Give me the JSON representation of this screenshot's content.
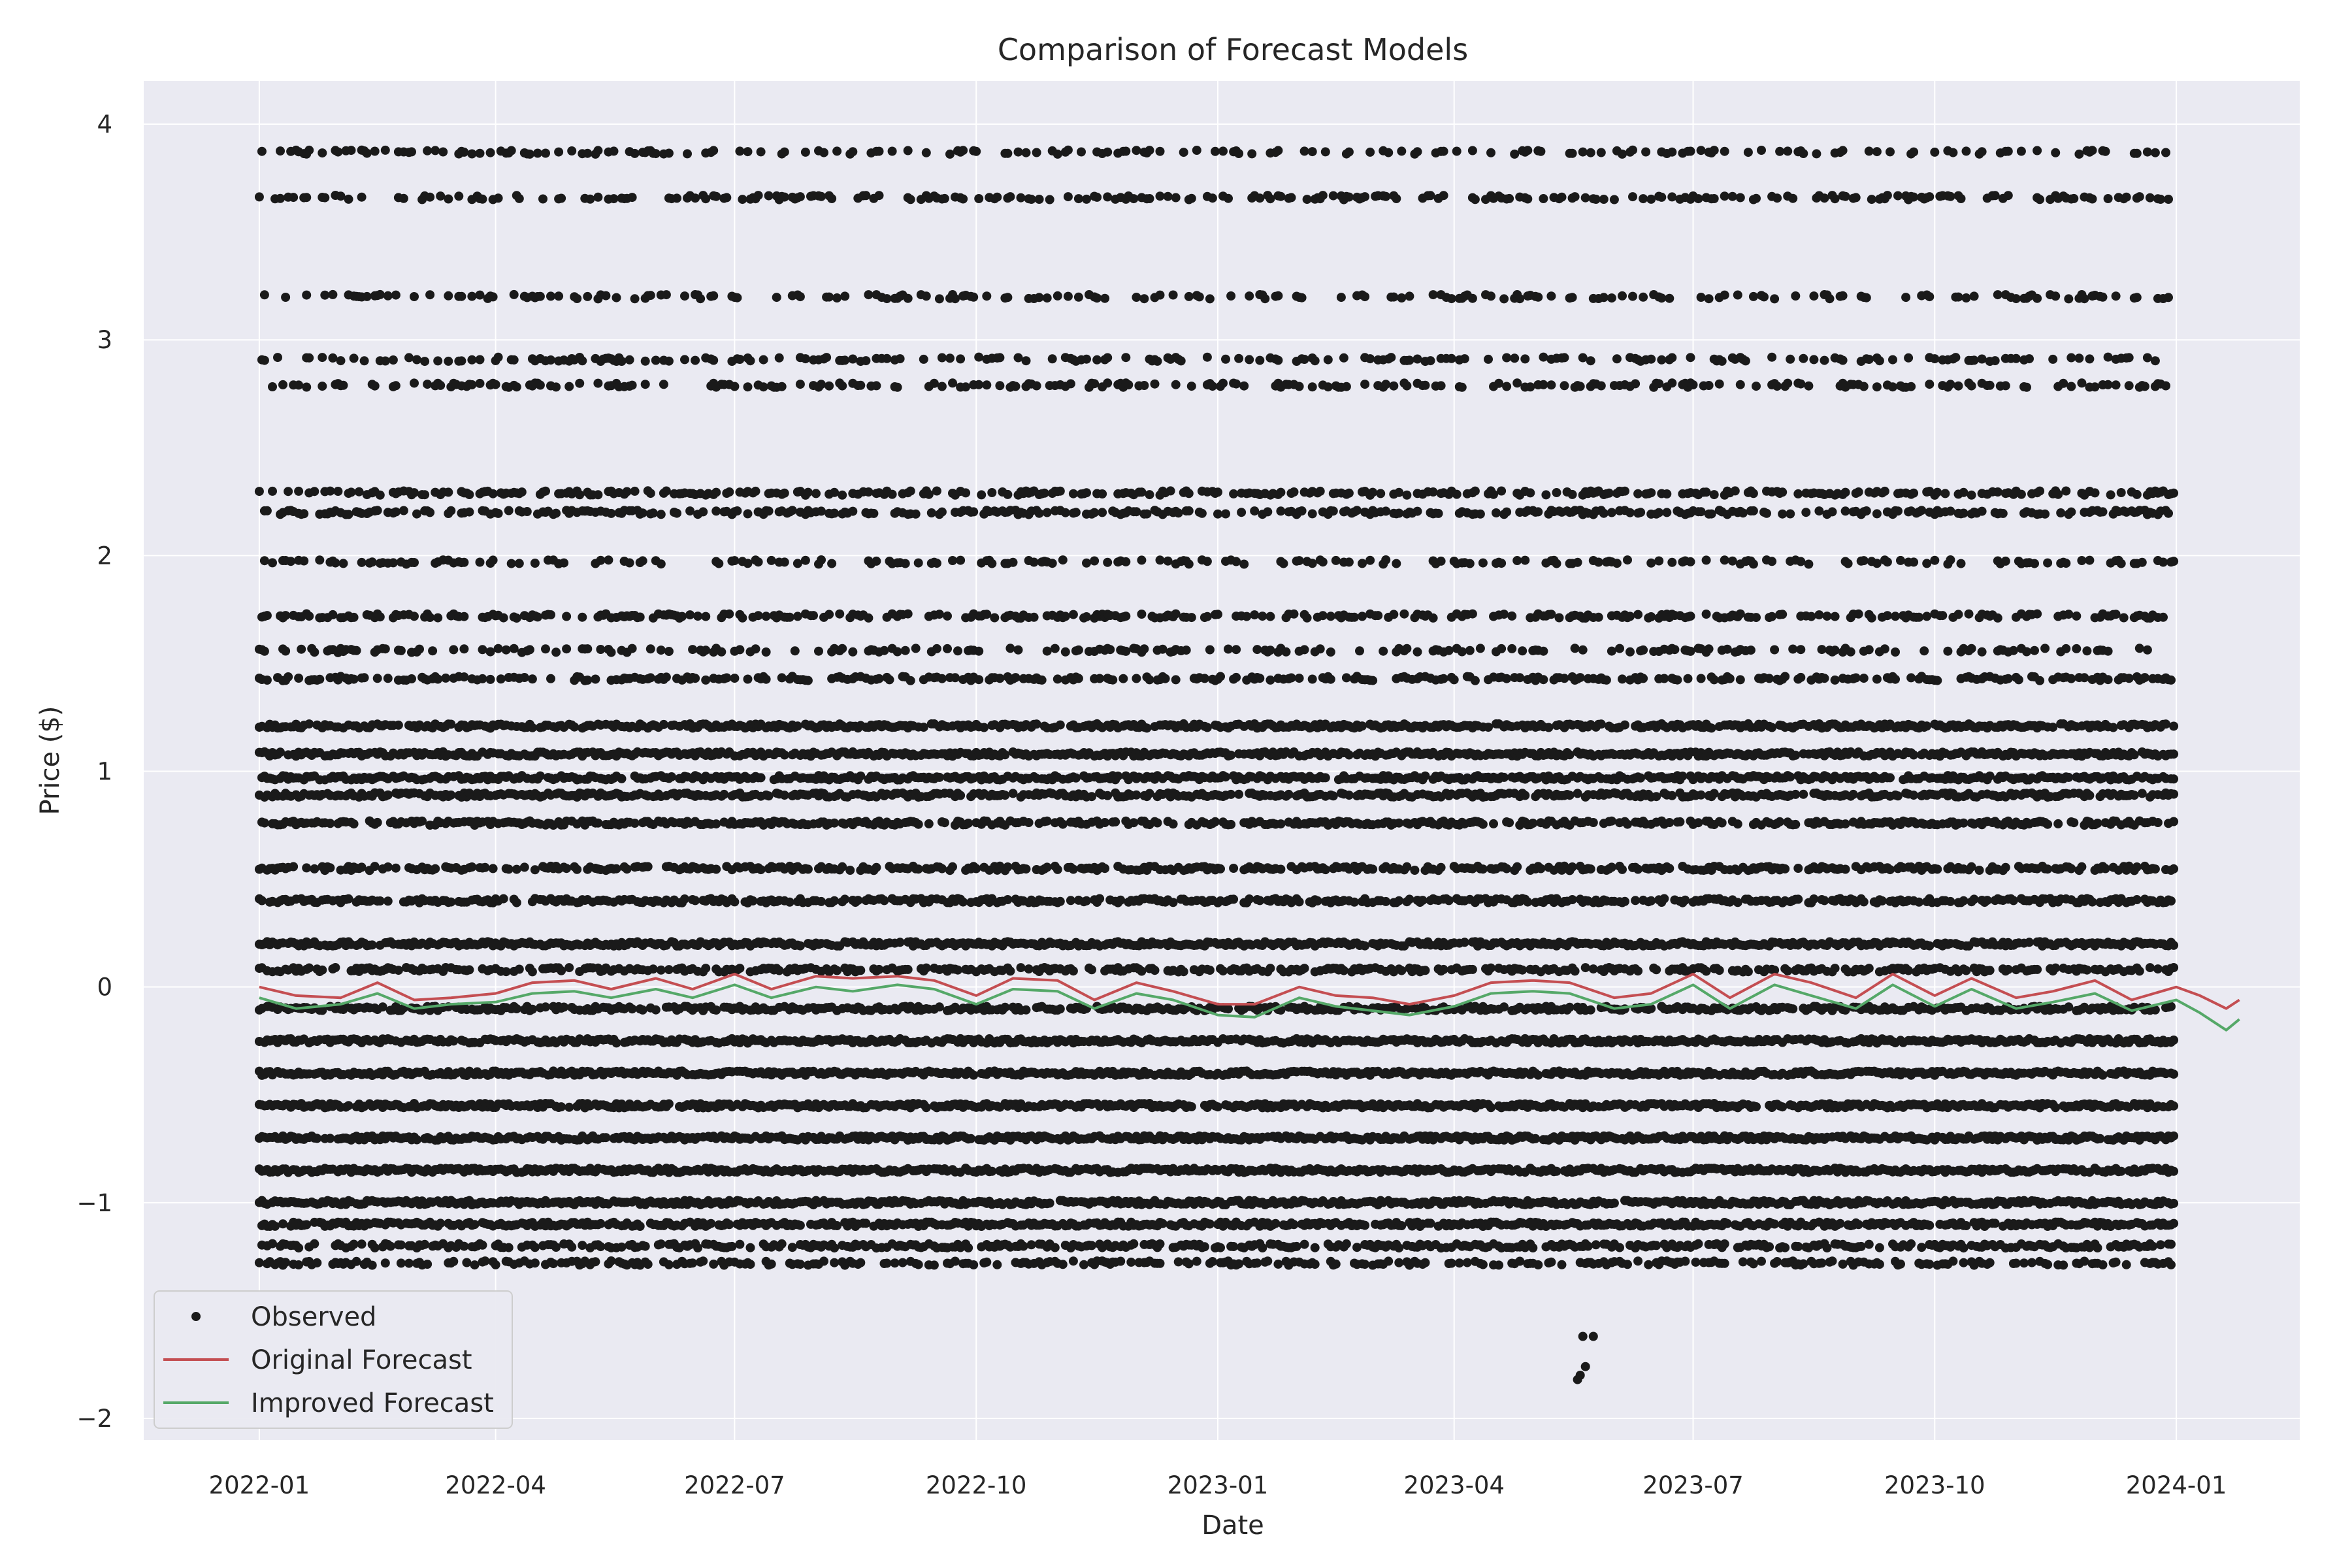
{
  "chart_data": {
    "type": "scatter",
    "title": "Comparison of Forecast Models",
    "xlabel": "Date",
    "ylabel": "Price ($)",
    "x_range": [
      "2021-11-18",
      "2024-02-17"
    ],
    "ylim": [
      -2.1,
      4.2
    ],
    "grid": true,
    "legend_position": "lower-left",
    "x_ticks": [
      "2022-01",
      "2022-04",
      "2022-07",
      "2022-10",
      "2023-01",
      "2023-04",
      "2023-07",
      "2023-10",
      "2024-01"
    ],
    "y_ticks": [
      -2,
      -1,
      0,
      1,
      2,
      3,
      4
    ],
    "y_tick_labels": [
      "−2",
      "−1",
      "0",
      "1",
      "2",
      "3",
      "4"
    ],
    "observed": {
      "name": "Observed",
      "color": "#1a1a1a",
      "x_start": "2022-01-01",
      "x_end": "2023-12-31",
      "levels": [
        3.87,
        3.66,
        3.2,
        2.91,
        2.79,
        2.29,
        2.2,
        1.97,
        1.72,
        1.56,
        1.43,
        1.21,
        1.08,
        0.97,
        0.89,
        0.76,
        0.55,
        0.4,
        0.2,
        0.08,
        -0.1,
        -0.25,
        -0.4,
        -0.55,
        -0.7,
        -0.85,
        -1.0,
        -1.1,
        -1.2,
        -1.28
      ],
      "density": [
        0.32,
        0.35,
        0.28,
        0.3,
        0.32,
        0.4,
        0.45,
        0.3,
        0.42,
        0.35,
        0.45,
        0.8,
        0.85,
        0.8,
        0.75,
        0.65,
        0.62,
        0.68,
        0.9,
        0.6,
        0.75,
        0.85,
        0.9,
        0.9,
        0.9,
        0.9,
        0.85,
        0.8,
        0.6,
        0.5
      ],
      "outliers": [
        {
          "x": "2023-05-20",
          "y": -1.62
        },
        {
          "x": "2023-05-24",
          "y": -1.62
        },
        {
          "x": "2023-05-21",
          "y": -1.76
        },
        {
          "x": "2023-05-19",
          "y": -1.8
        },
        {
          "x": "2023-05-18",
          "y": -1.82
        }
      ]
    },
    "series": [
      {
        "name": "Original Forecast",
        "color": "#c44e52",
        "x": [
          "2022-01-01",
          "2022-01-15",
          "2022-02-01",
          "2022-02-15",
          "2022-03-01",
          "2022-03-15",
          "2022-04-01",
          "2022-04-15",
          "2022-05-01",
          "2022-05-15",
          "2022-06-01",
          "2022-06-15",
          "2022-07-01",
          "2022-07-15",
          "2022-08-01",
          "2022-08-15",
          "2022-09-01",
          "2022-09-15",
          "2022-10-01",
          "2022-10-15",
          "2022-11-01",
          "2022-11-15",
          "2022-12-01",
          "2022-12-15",
          "2023-01-01",
          "2023-01-15",
          "2023-02-01",
          "2023-02-15",
          "2023-03-01",
          "2023-03-15",
          "2023-04-01",
          "2023-04-15",
          "2023-05-01",
          "2023-05-15",
          "2023-06-01",
          "2023-06-15",
          "2023-07-01",
          "2023-07-15",
          "2023-08-01",
          "2023-08-15",
          "2023-09-01",
          "2023-09-15",
          "2023-10-01",
          "2023-10-15",
          "2023-11-01",
          "2023-11-15",
          "2023-12-01",
          "2023-12-15",
          "2024-01-01",
          "2024-01-10",
          "2024-01-20",
          "2024-01-25"
        ],
        "values": [
          0.0,
          -0.04,
          -0.05,
          0.02,
          -0.06,
          -0.05,
          -0.03,
          0.02,
          0.03,
          -0.01,
          0.04,
          -0.01,
          0.06,
          -0.01,
          0.05,
          0.04,
          0.05,
          0.03,
          -0.04,
          0.04,
          0.03,
          -0.06,
          0.02,
          -0.02,
          -0.08,
          -0.08,
          0.0,
          -0.04,
          -0.05,
          -0.08,
          -0.04,
          0.02,
          0.03,
          0.02,
          -0.05,
          -0.03,
          0.06,
          -0.05,
          0.06,
          0.02,
          -0.05,
          0.06,
          -0.04,
          0.04,
          -0.05,
          -0.02,
          0.03,
          -0.06,
          0.0,
          -0.04,
          -0.1,
          -0.06
        ]
      },
      {
        "name": "Improved Forecast",
        "color": "#55a868",
        "x": [
          "2022-01-01",
          "2022-01-15",
          "2022-02-01",
          "2022-02-15",
          "2022-03-01",
          "2022-03-15",
          "2022-04-01",
          "2022-04-15",
          "2022-05-01",
          "2022-05-15",
          "2022-06-01",
          "2022-06-15",
          "2022-07-01",
          "2022-07-15",
          "2022-08-01",
          "2022-08-15",
          "2022-09-01",
          "2022-09-15",
          "2022-10-01",
          "2022-10-15",
          "2022-11-01",
          "2022-11-15",
          "2022-12-01",
          "2022-12-15",
          "2023-01-01",
          "2023-01-15",
          "2023-02-01",
          "2023-02-15",
          "2023-03-01",
          "2023-03-15",
          "2023-04-01",
          "2023-04-15",
          "2023-05-01",
          "2023-05-15",
          "2023-06-01",
          "2023-06-15",
          "2023-07-01",
          "2023-07-15",
          "2023-08-01",
          "2023-08-15",
          "2023-09-01",
          "2023-09-15",
          "2023-10-01",
          "2023-10-15",
          "2023-11-01",
          "2023-11-15",
          "2023-12-01",
          "2023-12-15",
          "2024-01-01",
          "2024-01-10",
          "2024-01-20",
          "2024-01-25"
        ],
        "values": [
          -0.05,
          -0.1,
          -0.08,
          -0.03,
          -0.1,
          -0.08,
          -0.07,
          -0.03,
          -0.02,
          -0.05,
          -0.01,
          -0.05,
          0.01,
          -0.05,
          0.0,
          -0.02,
          0.01,
          -0.01,
          -0.08,
          -0.01,
          -0.02,
          -0.1,
          -0.03,
          -0.06,
          -0.13,
          -0.14,
          -0.05,
          -0.09,
          -0.11,
          -0.13,
          -0.09,
          -0.03,
          -0.02,
          -0.03,
          -0.1,
          -0.08,
          0.01,
          -0.1,
          0.01,
          -0.04,
          -0.1,
          0.01,
          -0.09,
          -0.01,
          -0.1,
          -0.07,
          -0.03,
          -0.11,
          -0.06,
          -0.12,
          -0.2,
          -0.15
        ]
      }
    ],
    "legend": [
      "Observed",
      "Original Forecast",
      "Improved Forecast"
    ]
  }
}
